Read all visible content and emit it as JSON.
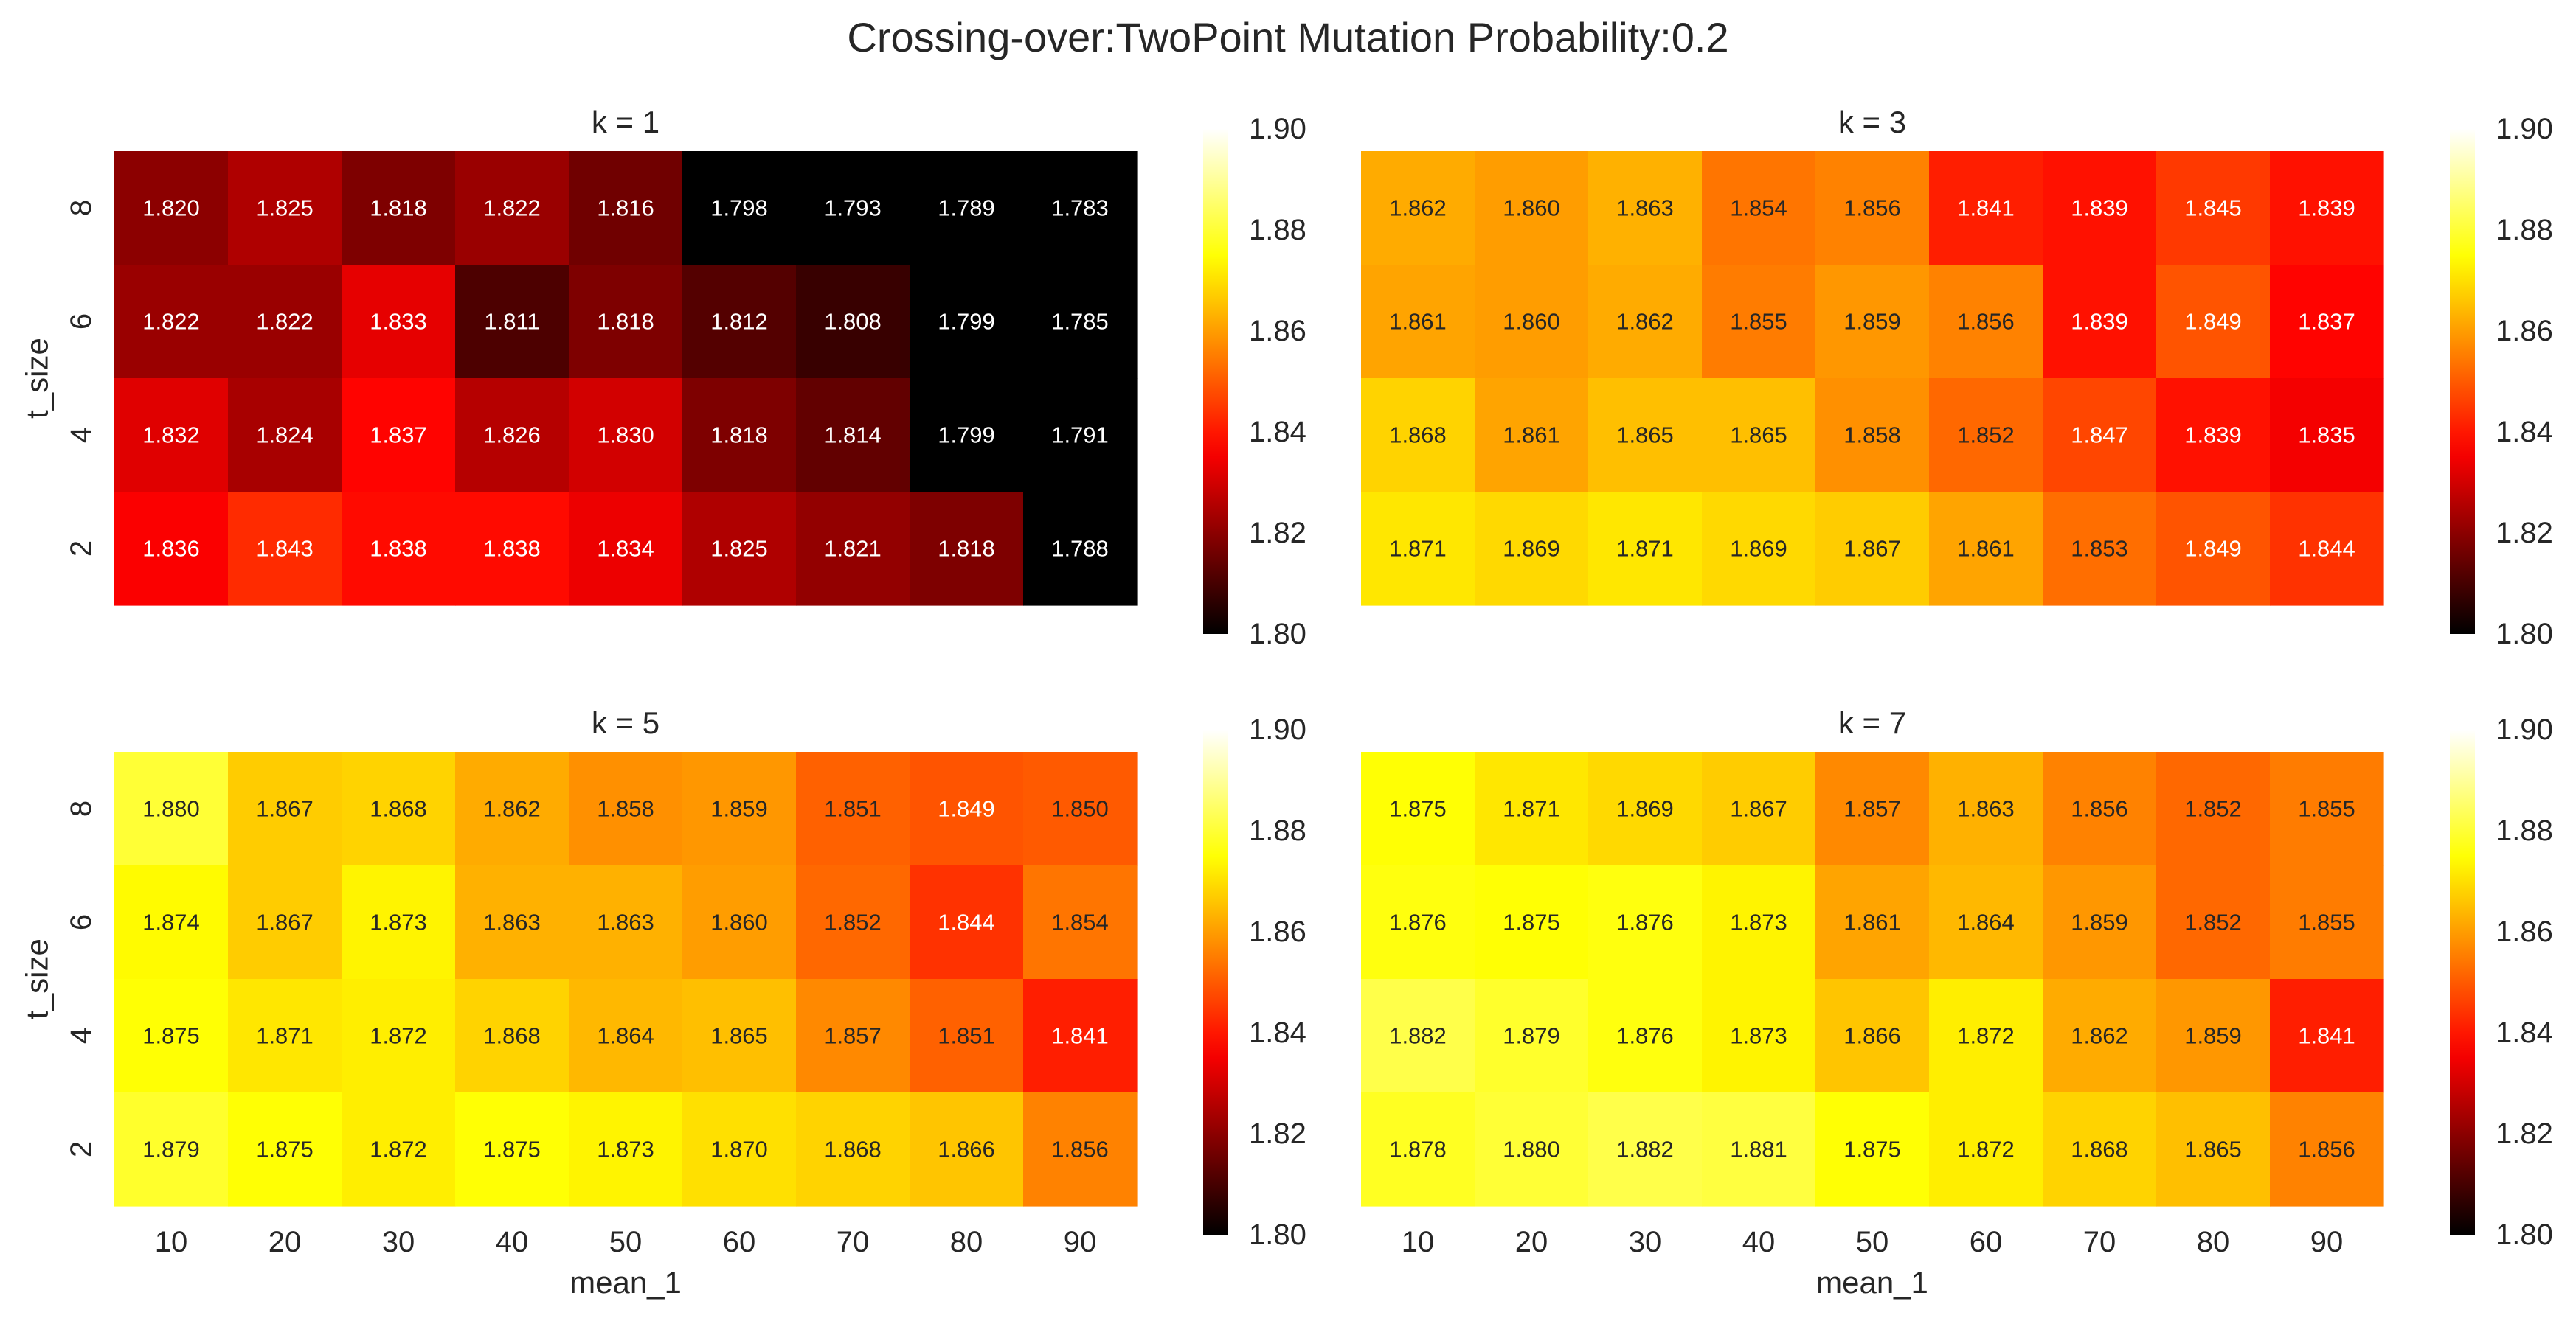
{
  "chart_data": {
    "type": "heatmap",
    "suptitle": "Crossing-over:TwoPoint Mutation Probability:0.2",
    "colormap": "hot",
    "color_range": [
      1.8,
      1.9
    ],
    "xlabel": "mean_1",
    "ylabel": "t_size",
    "x_categories": [
      "10",
      "20",
      "30",
      "40",
      "50",
      "60",
      "70",
      "80",
      "90"
    ],
    "y_categories": [
      "8",
      "6",
      "4",
      "2"
    ],
    "colorbar_ticks": [
      "1.90",
      "1.88",
      "1.86",
      "1.84",
      "1.82",
      "1.80"
    ],
    "panels": [
      {
        "title": "k = 1",
        "values": [
          [
            1.82,
            1.825,
            1.818,
            1.822,
            1.816,
            1.798,
            1.793,
            1.789,
            1.783
          ],
          [
            1.822,
            1.822,
            1.833,
            1.811,
            1.818,
            1.812,
            1.808,
            1.799,
            1.785
          ],
          [
            1.832,
            1.824,
            1.837,
            1.826,
            1.83,
            1.818,
            1.814,
            1.799,
            1.791
          ],
          [
            1.836,
            1.843,
            1.838,
            1.838,
            1.834,
            1.825,
            1.821,
            1.818,
            1.788
          ]
        ]
      },
      {
        "title": "k = 3",
        "values": [
          [
            1.862,
            1.86,
            1.863,
            1.854,
            1.856,
            1.841,
            1.839,
            1.845,
            1.839
          ],
          [
            1.861,
            1.86,
            1.862,
            1.855,
            1.859,
            1.856,
            1.839,
            1.849,
            1.837
          ],
          [
            1.868,
            1.861,
            1.865,
            1.865,
            1.858,
            1.852,
            1.847,
            1.839,
            1.835
          ],
          [
            1.871,
            1.869,
            1.871,
            1.869,
            1.867,
            1.861,
            1.853,
            1.849,
            1.844
          ]
        ]
      },
      {
        "title": "k = 5",
        "values": [
          [
            1.88,
            1.867,
            1.868,
            1.862,
            1.858,
            1.859,
            1.851,
            1.849,
            1.85
          ],
          [
            1.874,
            1.867,
            1.873,
            1.863,
            1.863,
            1.86,
            1.852,
            1.844,
            1.854
          ],
          [
            1.875,
            1.871,
            1.872,
            1.868,
            1.864,
            1.865,
            1.857,
            1.851,
            1.841
          ],
          [
            1.879,
            1.875,
            1.872,
            1.875,
            1.873,
            1.87,
            1.868,
            1.866,
            1.856
          ]
        ]
      },
      {
        "title": "k = 7",
        "values": [
          [
            1.875,
            1.871,
            1.869,
            1.867,
            1.857,
            1.863,
            1.856,
            1.852,
            1.855
          ],
          [
            1.876,
            1.875,
            1.876,
            1.873,
            1.861,
            1.864,
            1.859,
            1.852,
            1.855
          ],
          [
            1.882,
            1.879,
            1.876,
            1.873,
            1.866,
            1.872,
            1.862,
            1.859,
            1.841
          ],
          [
            1.878,
            1.88,
            1.882,
            1.881,
            1.875,
            1.872,
            1.868,
            1.865,
            1.856
          ]
        ]
      }
    ]
  }
}
